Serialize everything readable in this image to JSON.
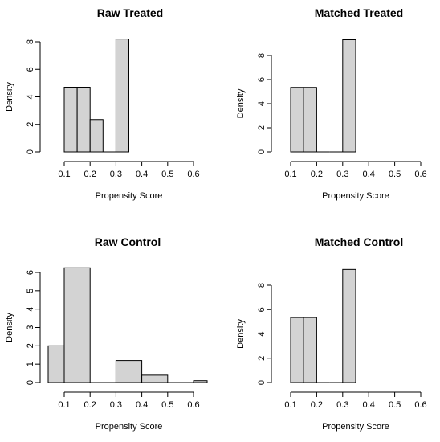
{
  "chart_data": [
    {
      "type": "bar",
      "title": "Raw Treated",
      "xlabel": "Propensity Score",
      "ylabel": "Density",
      "bin_edges": [
        0.1,
        0.15,
        0.2,
        0.25,
        0.3,
        0.35
      ],
      "values": [
        4.7,
        4.7,
        2.35,
        0,
        8.2
      ],
      "xlim": [
        0.1,
        0.6
      ],
      "ylim": [
        0,
        8
      ],
      "xticks": [
        "0.1",
        "0.2",
        "0.3",
        "0.4",
        "0.5",
        "0.6"
      ],
      "yticks": [
        "0",
        "2",
        "4",
        "6",
        "8"
      ],
      "grid": false
    },
    {
      "type": "bar",
      "title": "Matched Treated",
      "xlabel": "Propensity Score",
      "ylabel": "Density",
      "bin_edges": [
        0.1,
        0.15,
        0.2,
        0.25,
        0.3,
        0.35
      ],
      "values": [
        5.35,
        5.35,
        0,
        0,
        9.3
      ],
      "xlim": [
        0.1,
        0.6
      ],
      "ylim": [
        0,
        8
      ],
      "xticks": [
        "0.1",
        "0.2",
        "0.3",
        "0.4",
        "0.5",
        "0.6"
      ],
      "yticks": [
        "0",
        "2",
        "4",
        "6",
        "8"
      ],
      "grid": false
    },
    {
      "type": "bar",
      "title": "Raw Control",
      "xlabel": "Propensity Score",
      "ylabel": "Density",
      "bin_edges": [
        0.0,
        0.1,
        0.2,
        0.3,
        0.4,
        0.5,
        0.6,
        0.7
      ],
      "values": [
        2.0,
        6.25,
        0,
        1.2,
        0.4,
        0,
        0.1
      ],
      "xlim": [
        0.1,
        0.6
      ],
      "ylim": [
        0,
        6
      ],
      "xticks": [
        "0.1",
        "0.2",
        "0.3",
        "0.4",
        "0.5",
        "0.6"
      ],
      "yticks": [
        "0",
        "1",
        "2",
        "3",
        "4",
        "5",
        "6"
      ],
      "grid": false
    },
    {
      "type": "bar",
      "title": "Matched Control",
      "xlabel": "Propensity Score",
      "ylabel": "Density",
      "bin_edges": [
        0.1,
        0.15,
        0.2,
        0.25,
        0.3,
        0.35
      ],
      "values": [
        5.35,
        5.35,
        0,
        0,
        9.3
      ],
      "xlim": [
        0.1,
        0.6
      ],
      "ylim": [
        0,
        8
      ],
      "xticks": [
        "0.1",
        "0.2",
        "0.3",
        "0.4",
        "0.5",
        "0.6"
      ],
      "yticks": [
        "0",
        "2",
        "4",
        "6",
        "8"
      ],
      "grid": false
    }
  ]
}
